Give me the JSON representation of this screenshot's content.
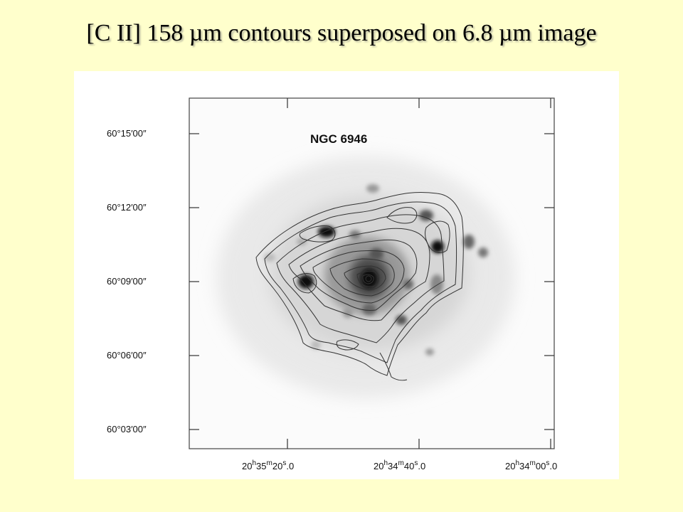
{
  "slide": {
    "title": "[C II] 158 µm contours superposed on 6.8 µm image"
  },
  "figure": {
    "object_label": "NGC 6946",
    "y_tick_labels": [
      "60°15′00″",
      "60°12′00″",
      "60°09′00″",
      "60°06′00″",
      "60°03′00″"
    ],
    "x_tick_labels": [
      {
        "hms": "20h35m20.0",
        "h": "20",
        "m": "35",
        "s": "20",
        "frac": "0"
      },
      {
        "hms": "20h34m40.0",
        "h": "20",
        "m": "34",
        "s": "40",
        "frac": "0"
      },
      {
        "hms": "20h34m00.0",
        "h": "20",
        "m": "34",
        "s": "00",
        "frac": "0"
      }
    ],
    "colors": {
      "background": "#ffffcc",
      "panel": "#ffffff",
      "contour": "#333333",
      "image_emission": "#000000"
    }
  }
}
